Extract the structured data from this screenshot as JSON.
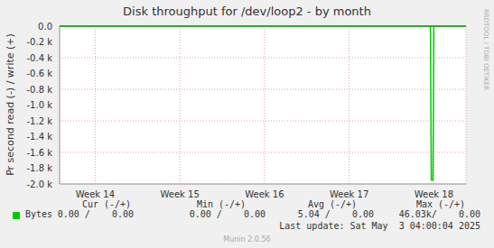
{
  "chart_data": {
    "type": "line",
    "title": "Disk throughput for /dev/loop2 - by month",
    "y_label": "Pr second read (-) / write (+)",
    "x": [
      13.58,
      17.96,
      17.97,
      17.99,
      18.0,
      18.38
    ],
    "series": [
      {
        "name": "Bytes",
        "color": "#00cc00",
        "values": [
          0,
          0,
          -1950,
          -1950,
          0,
          0
        ]
      }
    ],
    "xlim": [
      13.58,
      18.38
    ],
    "xticks": [
      {
        "value": 14,
        "label": "Week 14"
      },
      {
        "value": 15,
        "label": "Week 15"
      },
      {
        "value": 16,
        "label": "Week 16"
      },
      {
        "value": 17,
        "label": "Week 17"
      },
      {
        "value": 18,
        "label": "Week 18"
      }
    ],
    "ylim": [
      -2000,
      0
    ],
    "yticks": [
      {
        "value": -2000,
        "label": "-2.0 k"
      },
      {
        "value": -1800,
        "label": "-1.8 k"
      },
      {
        "value": -1600,
        "label": "-1.6 k"
      },
      {
        "value": -1400,
        "label": "-1.4 k"
      },
      {
        "value": -1200,
        "label": "-1.2 k"
      },
      {
        "value": -1000,
        "label": "-1.0 k"
      },
      {
        "value": -800,
        "label": "-0.8 k"
      },
      {
        "value": -600,
        "label": "-0.6 k"
      },
      {
        "value": -400,
        "label": "-0.4 k"
      },
      {
        "value": -200,
        "label": "-0.2 k"
      },
      {
        "value": 0,
        "label": "0.0"
      }
    ],
    "grid": true,
    "legend_table": {
      "headers": [
        "Cur (-/+)",
        "Min (-/+)",
        "Avg (-/+)",
        "Max (-/+)"
      ],
      "rows": [
        {
          "name": "Bytes",
          "values": [
            "0.00 /    0.00",
            "0.00 /    0.00",
            "5.04 /    0.00",
            "46.03k/    0.00"
          ]
        }
      ]
    },
    "last_update": "Last update: Sat May  3 04:00:04 2025",
    "footer": "Munin 2.0.56",
    "side_text": "RRDTOOL / TOBI OETIKER"
  }
}
